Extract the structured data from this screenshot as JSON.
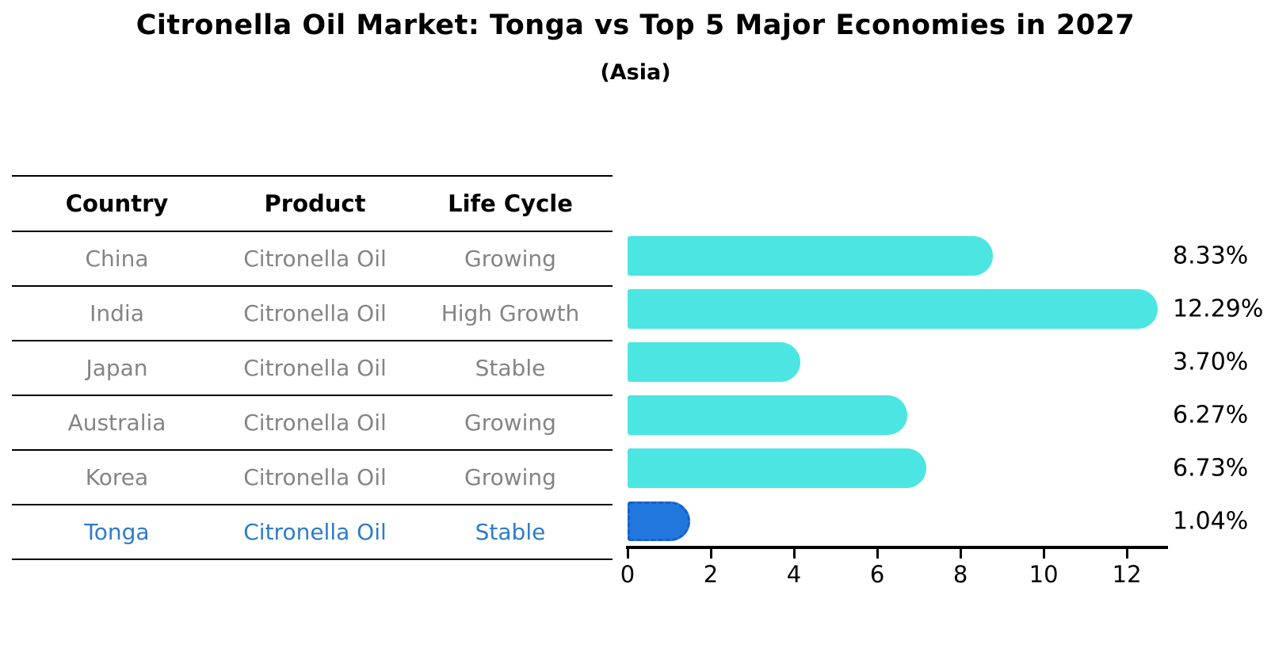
{
  "title": "Citronella Oil Market: Tonga vs Top 5 Major Economies in 2027",
  "subtitle": "(Asia)",
  "table": {
    "headers": [
      "Country",
      "Product",
      "Life Cycle"
    ],
    "rows": [
      {
        "country": "China",
        "product": "Citronella Oil",
        "life_cycle": "Growing"
      },
      {
        "country": "India",
        "product": "Citronella Oil",
        "life_cycle": "High Growth"
      },
      {
        "country": "Japan",
        "product": "Citronella Oil",
        "life_cycle": "Stable"
      },
      {
        "country": "Australia",
        "product": "Citronella Oil",
        "life_cycle": "Growing"
      },
      {
        "country": "Korea",
        "product": "Citronella Oil",
        "life_cycle": "Growing"
      },
      {
        "country": "Tonga",
        "product": "Citronella Oil",
        "life_cycle": "Stable"
      }
    ]
  },
  "chart_data": {
    "type": "bar",
    "orientation": "horizontal",
    "title": "Citronella Oil Market: Tonga vs Top 5 Major Economies in 2027",
    "subtitle": "(Asia)",
    "categories": [
      "China",
      "India",
      "Japan",
      "Australia",
      "Korea",
      "Tonga"
    ],
    "values": [
      8.33,
      12.29,
      3.7,
      6.27,
      6.73,
      1.04
    ],
    "labels": [
      "8.33%",
      "12.29%",
      "3.70%",
      "6.27%",
      "6.73%",
      "1.04%"
    ],
    "xlabel": "",
    "ylabel": "",
    "xlim": [
      0,
      12.95
    ],
    "xticks": [
      0,
      2,
      4,
      6,
      8,
      10,
      12
    ],
    "grid": false,
    "legend": false,
    "highlight_index": 5,
    "colors": {
      "bar_default": "#4BE6E1",
      "bar_highlight": "#2277DE",
      "highlight_border": "#1A5FC8",
      "highlight_text": "#2E7CC9",
      "table_text": "#848484",
      "header_text": "#000000"
    }
  }
}
